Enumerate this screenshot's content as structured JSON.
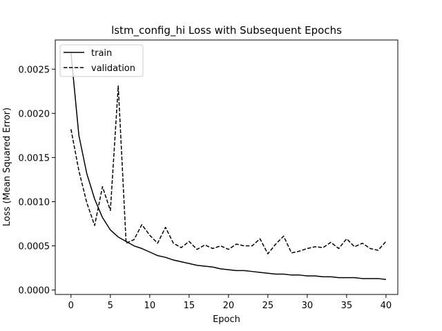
{
  "chart_data": {
    "type": "line",
    "title": "lstm_config_hi Loss with Subsequent Epochs",
    "xlabel": "Epoch",
    "ylabel": "Loss (Mean Squared Error)",
    "xlim": [
      -2,
      41.5
    ],
    "ylim": [
      -5e-05,
      0.00283
    ],
    "x_ticks": [
      0,
      5,
      10,
      15,
      20,
      25,
      30,
      35,
      40
    ],
    "x_tick_labels": [
      "0",
      "5",
      "10",
      "15",
      "20",
      "25",
      "30",
      "35",
      "40"
    ],
    "y_ticks": [
      0.0,
      0.0005,
      0.001,
      0.0015,
      0.002,
      0.0025
    ],
    "y_tick_labels": [
      "0.0000",
      "0.0005",
      "0.0010",
      "0.0015",
      "0.0020",
      "0.0025"
    ],
    "grid": false,
    "legend_position": "top-left",
    "x": [
      0,
      1,
      2,
      3,
      4,
      5,
      6,
      7,
      8,
      9,
      10,
      11,
      12,
      13,
      14,
      15,
      16,
      17,
      18,
      19,
      20,
      21,
      22,
      23,
      24,
      25,
      26,
      27,
      28,
      29,
      30,
      31,
      32,
      33,
      34,
      35,
      36,
      37,
      38,
      39,
      40
    ],
    "series": [
      {
        "name": "train",
        "style": "solid",
        "color": "#000000",
        "values": [
          0.00268,
          0.00175,
          0.00132,
          0.00103,
          0.00082,
          0.00068,
          0.0006,
          0.00055,
          0.0005,
          0.00047,
          0.00043,
          0.00039,
          0.00037,
          0.00034,
          0.00032,
          0.0003,
          0.00028,
          0.00027,
          0.00026,
          0.00024,
          0.00023,
          0.00022,
          0.00022,
          0.00021,
          0.0002,
          0.00019,
          0.00018,
          0.00018,
          0.00017,
          0.00017,
          0.00016,
          0.00016,
          0.00015,
          0.00015,
          0.00014,
          0.00014,
          0.00014,
          0.00013,
          0.00013,
          0.00013,
          0.00012
        ]
      },
      {
        "name": "validation",
        "style": "dashed",
        "color": "#000000",
        "values": [
          0.00182,
          0.00135,
          0.00099,
          0.00073,
          0.00117,
          0.0009,
          0.00231,
          0.00053,
          0.00057,
          0.00074,
          0.00062,
          0.00053,
          0.00071,
          0.00053,
          0.00048,
          0.00055,
          0.00046,
          0.00051,
          0.00047,
          0.0005,
          0.00046,
          0.00052,
          0.0005,
          0.0005,
          0.00058,
          0.00041,
          0.00052,
          0.00061,
          0.00042,
          0.00044,
          0.00047,
          0.00049,
          0.00048,
          0.00054,
          0.00047,
          0.00058,
          0.00049,
          0.00053,
          0.00047,
          0.00045,
          0.00055
        ]
      }
    ]
  }
}
